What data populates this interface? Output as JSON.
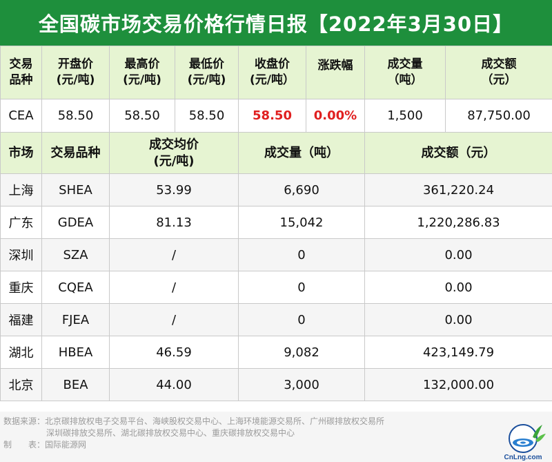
{
  "title": "全国碳市场交易价格行情日报【2022年3月30日】",
  "cea_table": {
    "headers": [
      [
        "交易",
        "品种"
      ],
      [
        "开盘价",
        "(元/吨)"
      ],
      [
        "最高价",
        "(元/吨)"
      ],
      [
        "最低价",
        "(元/吨)"
      ],
      [
        "收盘价",
        "(元/吨）"
      ],
      [
        "涨跌幅",
        ""
      ],
      [
        "成交量",
        "（吨）"
      ],
      [
        "成交额",
        "（元）"
      ]
    ],
    "row": [
      "CEA",
      "58.50",
      "58.50",
      "58.50",
      "58.50",
      "0.00%",
      "1,500",
      "87,750.00"
    ]
  },
  "regional_table": {
    "headers": [
      "市场",
      "交易品种",
      "成交均价",
      "(元/吨)",
      "成交量（吨）",
      "成交额（元）"
    ],
    "rows": [
      [
        "上海",
        "SHEA",
        "53.99",
        "6,690",
        "361,220.24"
      ],
      [
        "广东",
        "GDEA",
        "81.13",
        "15,042",
        "1,220,286.83"
      ],
      [
        "深圳",
        "SZA",
        "/",
        "0",
        "0.00"
      ],
      [
        "重庆",
        "CQEA",
        "/",
        "0",
        "0.00"
      ],
      [
        "福建",
        "FJEA",
        "/",
        "0",
        "0.00"
      ],
      [
        "湖北",
        "HBEA",
        "46.59",
        "9,082",
        "423,149.79"
      ],
      [
        "北京",
        "BEA",
        "44.00",
        "3,000",
        "132,000.00"
      ]
    ]
  },
  "footer": {
    "source_label": "数据来源：",
    "source_line1": "北京碳排放权电子交易平台、海峡股权交易中心、上海环境能源交易所、广州碳排放权交易所",
    "source_line2": "深圳碳排放交易所、湖北碳排放权交易中心、重庆碳排放权交易中心",
    "maker_label": "制　　表：",
    "maker": "国际能源网"
  },
  "logo_text": "CnLng.com",
  "colors": {
    "title_bg": "#1e8f3c",
    "header_bg": "#e6f4d2",
    "highlight": "#e02020"
  }
}
